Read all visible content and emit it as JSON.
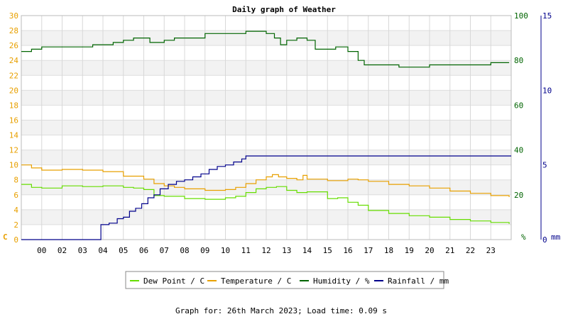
{
  "chart_data": {
    "type": "line",
    "title": "Daily graph of Weather",
    "footer": "Graph for: 26th March 2023; Load time: 0.09 s",
    "x_tick_labels": [
      "00",
      "02",
      "03",
      "04",
      "05",
      "06",
      "07",
      "08",
      "09",
      "10",
      "11",
      "12",
      "13",
      "14",
      "15",
      "16",
      "17",
      "18",
      "19",
      "20",
      "21",
      "22",
      "23"
    ],
    "left_axis": {
      "unit_label": "C",
      "min": 0,
      "max": 30,
      "ticks": [
        0,
        2,
        4,
        6,
        8,
        10,
        12,
        14,
        16,
        18,
        20,
        22,
        24,
        26,
        28,
        30
      ]
    },
    "humidity_axis": {
      "unit_label": "%",
      "min": 0,
      "max": 100,
      "ticks": [
        0,
        20,
        40,
        60,
        80,
        100
      ]
    },
    "rain_axis": {
      "unit_label": "mm",
      "min": 0,
      "max": 15,
      "ticks": [
        0,
        5,
        10,
        15
      ]
    },
    "series": [
      {
        "name": "Dew Point / C",
        "color": "#66dd00",
        "axis": "left",
        "x": [
          0,
          0.5,
          1,
          2,
          3,
          4,
          5,
          5.5,
          6,
          6.5,
          7,
          8,
          9,
          10,
          10.5,
          11,
          11.5,
          12,
          12.5,
          13,
          13.5,
          14,
          15,
          15.5,
          16,
          16.5,
          17,
          18,
          19,
          20,
          21,
          22,
          23,
          23.9
        ],
        "y": [
          7.4,
          7.0,
          6.9,
          7.2,
          7.1,
          7.2,
          7.0,
          6.9,
          6.7,
          5.9,
          5.8,
          5.5,
          5.4,
          5.6,
          5.8,
          6.3,
          6.8,
          7.0,
          7.1,
          6.6,
          6.3,
          6.4,
          5.5,
          5.6,
          5.0,
          4.6,
          3.9,
          3.5,
          3.2,
          3.0,
          2.7,
          2.5,
          2.3,
          2.1
        ]
      },
      {
        "name": "Temperature / C",
        "color": "#e8a000",
        "axis": "left",
        "x": [
          0,
          0.5,
          1,
          2,
          3,
          4,
          5,
          6,
          6.5,
          7,
          7.5,
          8,
          9,
          10,
          10.5,
          11,
          11.5,
          12,
          12.3,
          12.6,
          13,
          13.5,
          13.8,
          14,
          15,
          16,
          16.5,
          17,
          18,
          19,
          20,
          21,
          22,
          23,
          23.9
        ],
        "y": [
          10.0,
          9.6,
          9.3,
          9.4,
          9.3,
          9.1,
          8.5,
          8.1,
          7.5,
          7.2,
          7.0,
          6.8,
          6.6,
          6.7,
          7.0,
          7.5,
          8.0,
          8.4,
          8.7,
          8.4,
          8.2,
          8.0,
          8.6,
          8.1,
          7.9,
          8.1,
          8.0,
          7.8,
          7.4,
          7.2,
          6.9,
          6.5,
          6.2,
          5.9,
          5.7
        ]
      },
      {
        "name": "Humidity / %",
        "color": "#006400",
        "axis": "humidity",
        "x": [
          0,
          0.5,
          1,
          2,
          3,
          3.5,
          4,
          4.5,
          5,
          5.5,
          6,
          6.3,
          6.6,
          7,
          7.5,
          8,
          9,
          10,
          10.5,
          11,
          11.5,
          12,
          12.4,
          12.7,
          13,
          13.5,
          14,
          14.4,
          15,
          15.4,
          16,
          16.5,
          16.8,
          17,
          18,
          18.5,
          19,
          20,
          21,
          22,
          23,
          23.9
        ],
        "y": [
          84,
          85,
          86,
          86,
          86,
          87,
          87,
          88,
          89,
          90,
          90,
          88,
          88,
          89,
          90,
          90,
          92,
          92,
          92,
          93,
          93,
          92,
          90,
          87,
          89,
          90,
          89,
          85,
          85,
          86,
          84,
          80,
          78,
          78,
          78,
          77,
          77,
          78,
          78,
          78,
          79,
          79
        ]
      },
      {
        "name": "Rainfall / mm",
        "color": "#00008b",
        "axis": "rain",
        "x": [
          0,
          3.6,
          3.9,
          4.3,
          4.7,
          5.0,
          5.3,
          5.6,
          5.9,
          6.2,
          6.5,
          6.8,
          7.2,
          7.6,
          8.0,
          8.4,
          8.8,
          9.2,
          9.6,
          10.0,
          10.4,
          10.8,
          11.0,
          11.4,
          12.0,
          24
        ],
        "y": [
          0,
          0,
          1.0,
          1.1,
          1.4,
          1.5,
          1.9,
          2.1,
          2.4,
          2.8,
          3.0,
          3.4,
          3.7,
          3.9,
          4.0,
          4.2,
          4.4,
          4.7,
          4.9,
          5.0,
          5.2,
          5.4,
          5.6,
          5.6,
          5.6,
          5.6
        ]
      }
    ]
  }
}
